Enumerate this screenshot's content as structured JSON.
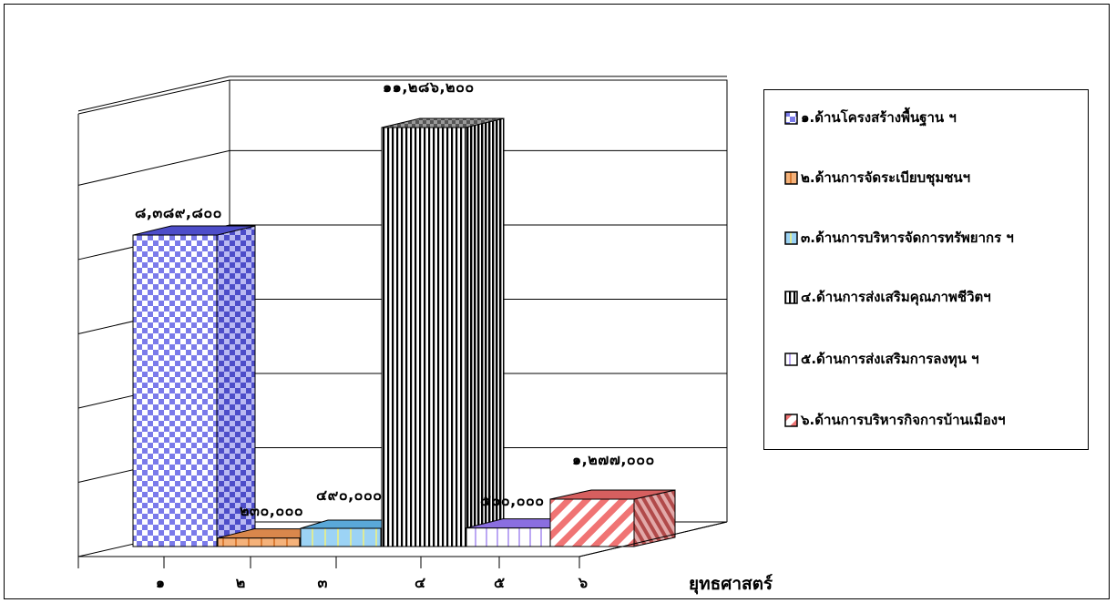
{
  "chart_data": {
    "type": "bar",
    "xlabel": "ยุทธศาสตร์",
    "ylabel": "",
    "title": "",
    "ylim": [
      0,
      14000000
    ],
    "grid": true,
    "legend_position": "right",
    "categories": [
      "๑",
      "๒",
      "๓",
      "๔",
      "๕",
      "๖"
    ],
    "values": [
      8389800,
      230000,
      490000,
      11286200,
      500000,
      1277000
    ],
    "value_labels": [
      "๘,๓๘๙,๘๐๐",
      "๒๓๐,๐๐๐",
      "๔๙๐,๐๐๐",
      "๑๑,๒๘๖,๒๐๐",
      "๕๐๐,๐๐๐",
      "๑,๒๗๗,๐๐๐"
    ],
    "series": [
      {
        "name": "๑.ด้านโครงสร้างพื้นฐาน ฯ",
        "color": "#7b7bea",
        "pattern": "checker"
      },
      {
        "name": "๒.ด้านการจัดระเบียบชุมชนฯ",
        "color": "#f5b27a",
        "pattern": "grid"
      },
      {
        "name": "๓.ด้านการบริหารจัดการทรัพยากร ฯ",
        "color": "#9cd3f5",
        "pattern": "vlines-yellow"
      },
      {
        "name": "๔.ด้านการส่งเสริมคุณภาพชีวิตฯ",
        "color": "#000000",
        "pattern": "vstripes"
      },
      {
        "name": "๕.ด้านการส่งเสริมการลงทุน ฯ",
        "color": "#a58cf0",
        "pattern": "vlines"
      },
      {
        "name": "๖.ด้านการบริหารกิจการบ้านเมืองฯ",
        "color": "#f07474",
        "pattern": "diagonal"
      }
    ]
  }
}
